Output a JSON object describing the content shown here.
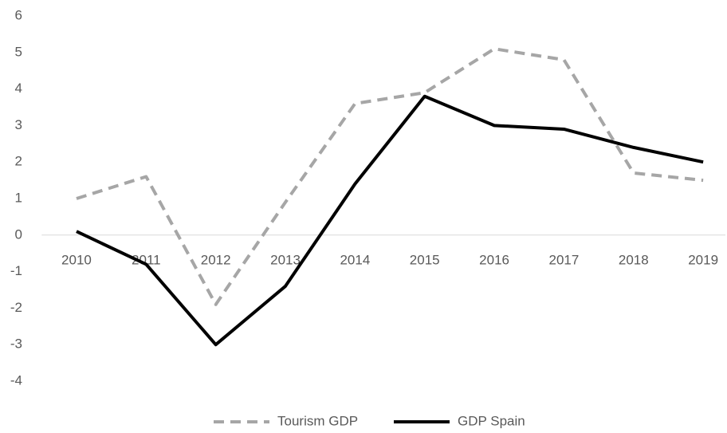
{
  "chart_data": {
    "type": "line",
    "categories": [
      "2010",
      "2011",
      "2012",
      "2013",
      "2014",
      "2015",
      "2016",
      "2017",
      "2018",
      "2019"
    ],
    "series": [
      {
        "name": "Tourism GDP",
        "color": "#a6a6a6",
        "dash": true,
        "values": [
          1.0,
          1.6,
          -1.9,
          0.9,
          3.6,
          3.9,
          5.1,
          4.8,
          1.7,
          1.5
        ]
      },
      {
        "name": "GDP Spain",
        "color": "#000000",
        "dash": false,
        "values": [
          0.1,
          -0.8,
          -3.0,
          -1.4,
          1.4,
          3.8,
          3.0,
          2.9,
          2.4,
          2.0
        ]
      }
    ],
    "ylim": [
      -4,
      6
    ],
    "yticks": [
      -4,
      -3,
      -2,
      -1,
      0,
      1,
      2,
      3,
      4,
      5,
      6
    ],
    "grid": false,
    "legend": "bottom"
  }
}
